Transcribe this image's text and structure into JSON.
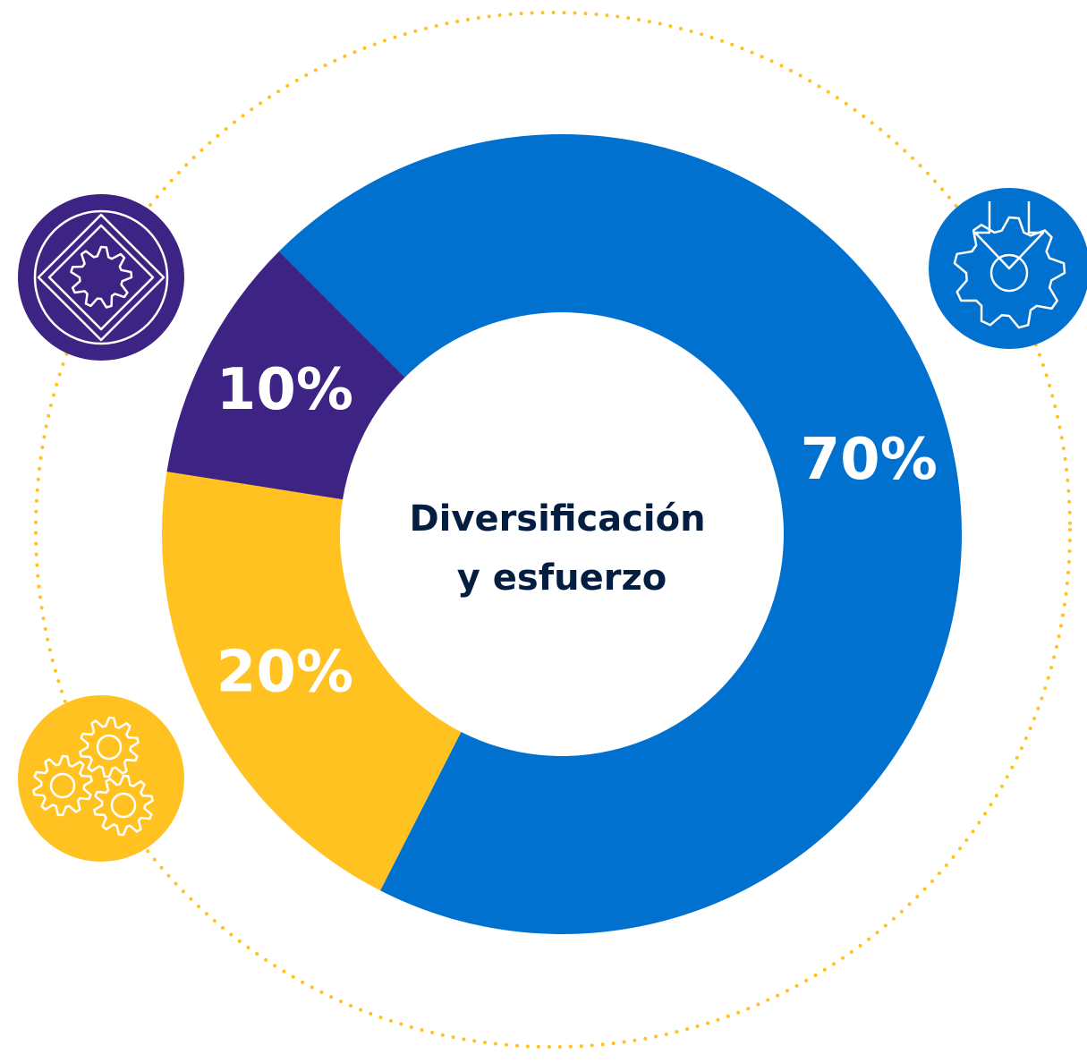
{
  "chart_data": {
    "type": "pie",
    "donut": true,
    "center_label": [
      "Diversificación",
      "y esfuerzo"
    ],
    "categories": [
      null,
      null,
      null
    ],
    "values": [
      70,
      20,
      10
    ],
    "value_labels": [
      "70%",
      "20%",
      "10%"
    ],
    "colors": [
      "#0071ce",
      "#ffc220",
      "#3d2383"
    ]
  }
}
